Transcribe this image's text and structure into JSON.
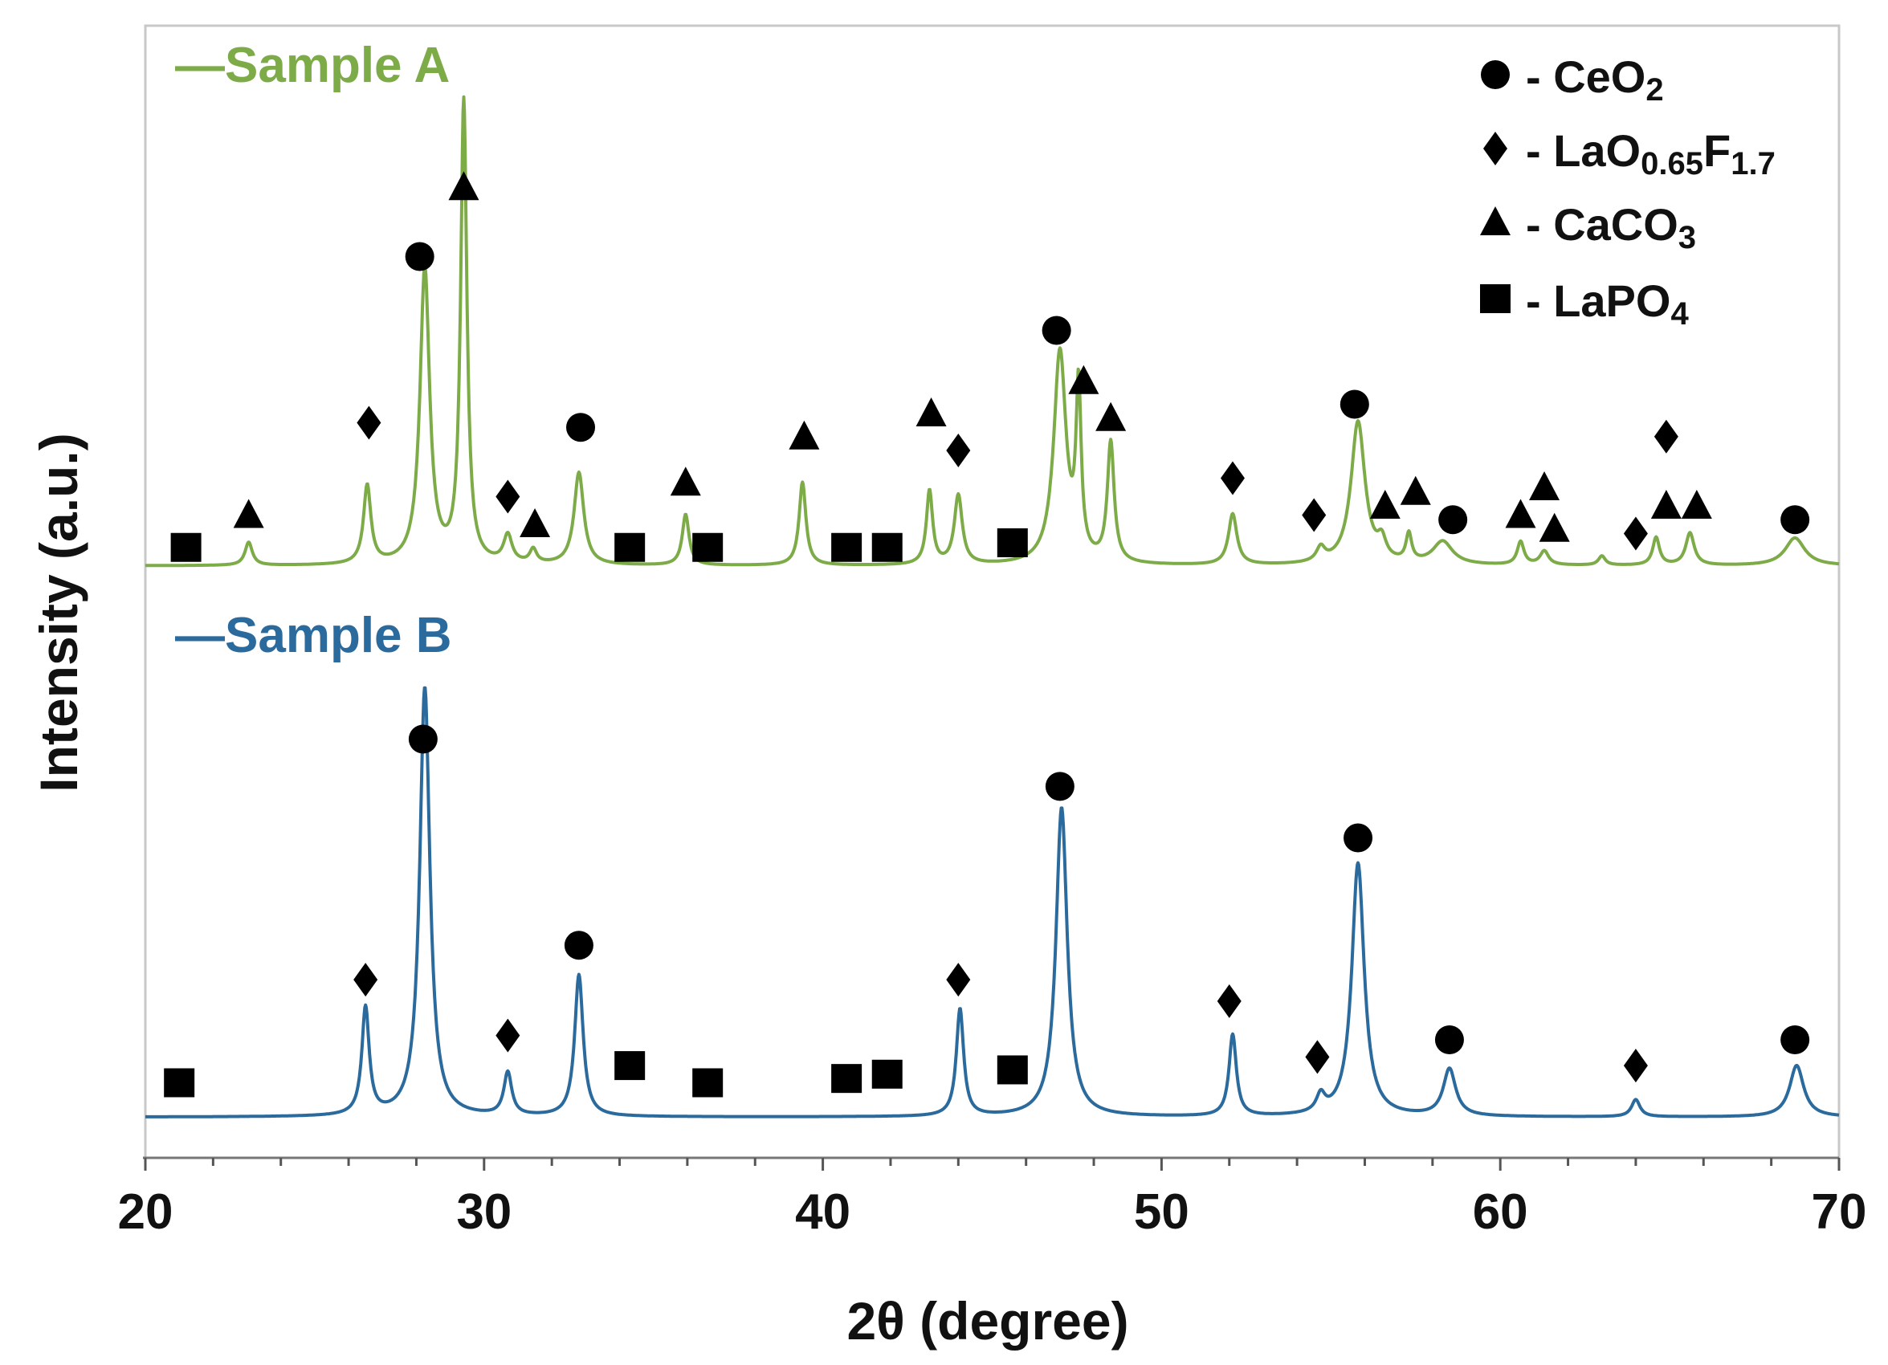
{
  "chart_data": {
    "type": "line",
    "title": "",
    "xlabel": "2θ (degree)",
    "ylabel": "Intensity (a.u.)",
    "xlim": [
      20,
      70
    ],
    "xticks": [
      20,
      30,
      40,
      50,
      60,
      70
    ],
    "yticks_shown": false,
    "colors": {
      "sample_a": "#7dab48",
      "sample_b": "#2b6a9c",
      "markers": "#000000",
      "frame": "#c8c8c8"
    },
    "series": [
      {
        "name": "Sample A",
        "label_text": "—Sample A",
        "baseline": 0.03,
        "peaks": [
          {
            "x": 23.05,
            "h": 0.05,
            "w": 0.13
          },
          {
            "x": 26.55,
            "h": 0.17,
            "w": 0.13
          },
          {
            "x": 28.25,
            "h": 0.64,
            "w": 0.17
          },
          {
            "x": 29.4,
            "h": 1.0,
            "w": 0.11
          },
          {
            "x": 30.7,
            "h": 0.06,
            "w": 0.15
          },
          {
            "x": 31.45,
            "h": 0.03,
            "w": 0.12
          },
          {
            "x": 32.8,
            "h": 0.2,
            "w": 0.17
          },
          {
            "x": 35.95,
            "h": 0.11,
            "w": 0.12
          },
          {
            "x": 39.4,
            "h": 0.18,
            "w": 0.12
          },
          {
            "x": 43.15,
            "h": 0.16,
            "w": 0.11
          },
          {
            "x": 44.0,
            "h": 0.15,
            "w": 0.14
          },
          {
            "x": 47.0,
            "h": 0.46,
            "w": 0.22
          },
          {
            "x": 47.55,
            "h": 0.36,
            "w": 0.09
          },
          {
            "x": 48.5,
            "h": 0.26,
            "w": 0.12
          },
          {
            "x": 52.1,
            "h": 0.11,
            "w": 0.15
          },
          {
            "x": 54.7,
            "h": 0.03,
            "w": 0.15
          },
          {
            "x": 55.8,
            "h": 0.31,
            "w": 0.25
          },
          {
            "x": 56.5,
            "h": 0.04,
            "w": 0.15
          },
          {
            "x": 57.3,
            "h": 0.06,
            "w": 0.1
          },
          {
            "x": 58.3,
            "h": 0.05,
            "w": 0.35
          },
          {
            "x": 60.6,
            "h": 0.05,
            "w": 0.12
          },
          {
            "x": 61.3,
            "h": 0.03,
            "w": 0.15
          },
          {
            "x": 63.0,
            "h": 0.02,
            "w": 0.12
          },
          {
            "x": 64.6,
            "h": 0.06,
            "w": 0.12
          },
          {
            "x": 65.6,
            "h": 0.07,
            "w": 0.15
          },
          {
            "x": 68.7,
            "h": 0.06,
            "w": 0.35
          }
        ],
        "markers": [
          {
            "phase": "LaPO4",
            "x": 21.2,
            "y": 0.07
          },
          {
            "phase": "CaCO3",
            "x": 23.05,
            "y": 0.14
          },
          {
            "phase": "LaO0.65F1.7",
            "x": 26.6,
            "y": 0.34
          },
          {
            "phase": "CeO2",
            "x": 28.1,
            "y": 0.7
          },
          {
            "phase": "CaCO3",
            "x": 29.4,
            "y": 0.85
          },
          {
            "phase": "LaO0.65F1.7",
            "x": 30.7,
            "y": 0.18
          },
          {
            "phase": "CaCO3",
            "x": 31.5,
            "y": 0.12
          },
          {
            "phase": "CeO2",
            "x": 32.85,
            "y": 0.33
          },
          {
            "phase": "LaPO4",
            "x": 34.3,
            "y": 0.07
          },
          {
            "phase": "CaCO3",
            "x": 35.95,
            "y": 0.21
          },
          {
            "phase": "LaPO4",
            "x": 36.6,
            "y": 0.07
          },
          {
            "phase": "CaCO3",
            "x": 39.45,
            "y": 0.31
          },
          {
            "phase": "LaPO4",
            "x": 40.7,
            "y": 0.07
          },
          {
            "phase": "LaPO4",
            "x": 41.9,
            "y": 0.07
          },
          {
            "phase": "CaCO3",
            "x": 43.2,
            "y": 0.36
          },
          {
            "phase": "LaO0.65F1.7",
            "x": 44.0,
            "y": 0.28
          },
          {
            "phase": "LaPO4",
            "x": 45.6,
            "y": 0.08
          },
          {
            "phase": "CeO2",
            "x": 46.9,
            "y": 0.54
          },
          {
            "phase": "CaCO3",
            "x": 47.7,
            "y": 0.43
          },
          {
            "phase": "CaCO3",
            "x": 48.5,
            "y": 0.35
          },
          {
            "phase": "LaO0.65F1.7",
            "x": 52.1,
            "y": 0.22
          },
          {
            "phase": "LaO0.65F1.7",
            "x": 54.5,
            "y": 0.14
          },
          {
            "phase": "CeO2",
            "x": 55.7,
            "y": 0.38
          },
          {
            "phase": "CaCO3",
            "x": 56.6,
            "y": 0.16
          },
          {
            "phase": "CaCO3",
            "x": 57.5,
            "y": 0.19
          },
          {
            "phase": "CeO2",
            "x": 58.6,
            "y": 0.13
          },
          {
            "phase": "CaCO3",
            "x": 60.6,
            "y": 0.14
          },
          {
            "phase": "CaCO3",
            "x": 61.3,
            "y": 0.2
          },
          {
            "phase": "CaCO3",
            "x": 61.6,
            "y": 0.11
          },
          {
            "phase": "LaO0.65F1.7",
            "x": 64.0,
            "y": 0.1
          },
          {
            "phase": "LaO0.65F1.7",
            "x": 64.9,
            "y": 0.31
          },
          {
            "phase": "CaCO3",
            "x": 64.9,
            "y": 0.16
          },
          {
            "phase": "CaCO3",
            "x": 65.8,
            "y": 0.16
          },
          {
            "phase": "CeO2",
            "x": 68.7,
            "y": 0.13
          }
        ]
      },
      {
        "name": "Sample B",
        "label_text": "—Sample B",
        "baseline": 0.02,
        "peaks": [
          {
            "x": 26.5,
            "h": 0.25,
            "w": 0.13
          },
          {
            "x": 28.25,
            "h": 1.0,
            "w": 0.18
          },
          {
            "x": 30.7,
            "h": 0.1,
            "w": 0.14
          },
          {
            "x": 32.8,
            "h": 0.33,
            "w": 0.15
          },
          {
            "x": 44.05,
            "h": 0.25,
            "w": 0.13
          },
          {
            "x": 47.05,
            "h": 0.72,
            "w": 0.2
          },
          {
            "x": 52.1,
            "h": 0.19,
            "w": 0.13
          },
          {
            "x": 54.7,
            "h": 0.04,
            "w": 0.15
          },
          {
            "x": 55.8,
            "h": 0.59,
            "w": 0.22
          },
          {
            "x": 58.5,
            "h": 0.11,
            "w": 0.22
          },
          {
            "x": 64.0,
            "h": 0.04,
            "w": 0.15
          },
          {
            "x": 68.75,
            "h": 0.12,
            "w": 0.25
          }
        ],
        "markers": [
          {
            "phase": "LaPO4",
            "x": 21.0,
            "y": 0.1
          },
          {
            "phase": "LaO0.65F1.7",
            "x": 26.5,
            "y": 0.34
          },
          {
            "phase": "CeO2",
            "x": 28.2,
            "y": 0.9
          },
          {
            "phase": "LaO0.65F1.7",
            "x": 30.7,
            "y": 0.21
          },
          {
            "phase": "CeO2",
            "x": 32.8,
            "y": 0.42
          },
          {
            "phase": "LaPO4",
            "x": 34.3,
            "y": 0.14
          },
          {
            "phase": "LaPO4",
            "x": 36.6,
            "y": 0.1
          },
          {
            "phase": "LaPO4",
            "x": 40.7,
            "y": 0.11
          },
          {
            "phase": "LaPO4",
            "x": 41.9,
            "y": 0.12
          },
          {
            "phase": "LaO0.65F1.7",
            "x": 44.0,
            "y": 0.34
          },
          {
            "phase": "LaPO4",
            "x": 45.6,
            "y": 0.13
          },
          {
            "phase": "CeO2",
            "x": 47.0,
            "y": 0.79
          },
          {
            "phase": "LaO0.65F1.7",
            "x": 52.0,
            "y": 0.29
          },
          {
            "phase": "LaO0.65F1.7",
            "x": 54.6,
            "y": 0.16
          },
          {
            "phase": "CeO2",
            "x": 55.8,
            "y": 0.67
          },
          {
            "phase": "CeO2",
            "x": 58.5,
            "y": 0.2
          },
          {
            "phase": "LaO0.65F1.7",
            "x": 64.0,
            "y": 0.14
          },
          {
            "phase": "CeO2",
            "x": 68.7,
            "y": 0.2
          }
        ]
      }
    ],
    "legend": {
      "placement": "top-right",
      "entries": [
        {
          "phase": "CeO2",
          "marker": "circle",
          "label_parts": [
            {
              "t": "- CeO",
              "sub": false
            },
            {
              "t": "2",
              "sub": true
            }
          ]
        },
        {
          "phase": "LaO0.65F1.7",
          "marker": "diamond",
          "label_parts": [
            {
              "t": "- LaO",
              "sub": false
            },
            {
              "t": "0.65",
              "sub": true
            },
            {
              "t": "F",
              "sub": false
            },
            {
              "t": "1.7",
              "sub": true
            }
          ]
        },
        {
          "phase": "CaCO3",
          "marker": "triangle",
          "label_parts": [
            {
              "t": "- CaCO",
              "sub": false
            },
            {
              "t": "3",
              "sub": true
            }
          ]
        },
        {
          "phase": "LaPO4",
          "marker": "square",
          "label_parts": [
            {
              "t": "- LaPO",
              "sub": false
            },
            {
              "t": "4",
              "sub": true
            }
          ]
        }
      ]
    }
  }
}
